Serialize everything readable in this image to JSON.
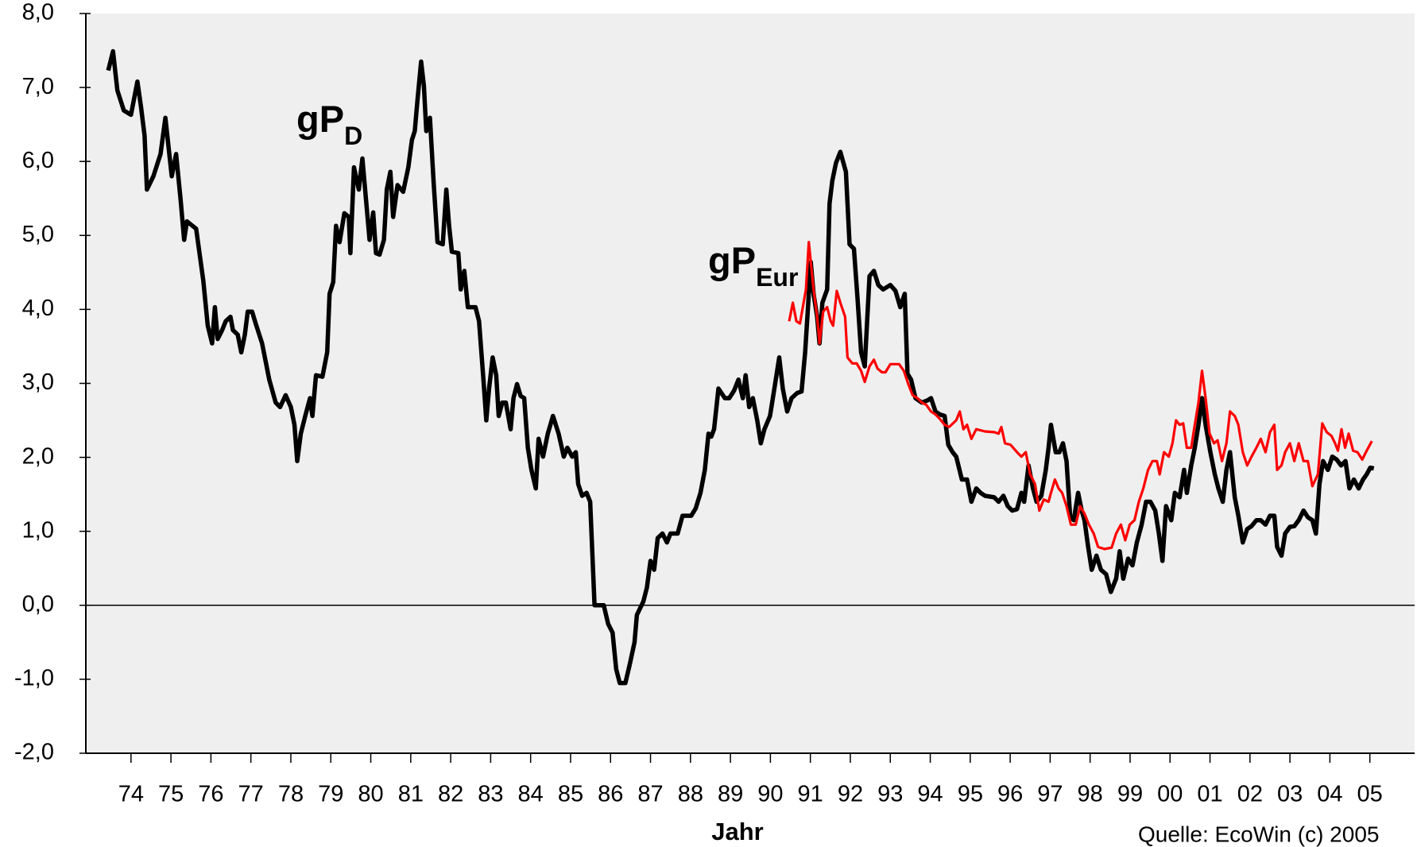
{
  "chart_data": {
    "type": "line",
    "x_label": "Jahr",
    "source": "Quelle: EcoWin (c) 2005",
    "annotations": [
      {
        "text": "gP",
        "sub": "D"
      },
      {
        "text": "gP",
        "sub": "Eur"
      }
    ],
    "xlim": [
      1973.37,
      2006.62
    ],
    "xticks": [
      {
        "value": 1974.5,
        "label": "74"
      },
      {
        "value": 1975.5,
        "label": "75"
      },
      {
        "value": 1976.5,
        "label": "76"
      },
      {
        "value": 1977.5,
        "label": "77"
      },
      {
        "value": 1978.5,
        "label": "78"
      },
      {
        "value": 1979.5,
        "label": "79"
      },
      {
        "value": 1980.5,
        "label": "80"
      },
      {
        "value": 1981.5,
        "label": "81"
      },
      {
        "value": 1982.5,
        "label": "82"
      },
      {
        "value": 1983.5,
        "label": "83"
      },
      {
        "value": 1984.5,
        "label": "84"
      },
      {
        "value": 1985.5,
        "label": "85"
      },
      {
        "value": 1986.5,
        "label": "86"
      },
      {
        "value": 1987.5,
        "label": "87"
      },
      {
        "value": 1988.5,
        "label": "88"
      },
      {
        "value": 1989.5,
        "label": "89"
      },
      {
        "value": 1990.5,
        "label": "90"
      },
      {
        "value": 1991.5,
        "label": "91"
      },
      {
        "value": 1992.5,
        "label": "92"
      },
      {
        "value": 1993.5,
        "label": "93"
      },
      {
        "value": 1994.5,
        "label": "94"
      },
      {
        "value": 1995.5,
        "label": "95"
      },
      {
        "value": 1996.5,
        "label": "96"
      },
      {
        "value": 1997.5,
        "label": "97"
      },
      {
        "value": 1998.5,
        "label": "98"
      },
      {
        "value": 1999.5,
        "label": "99"
      },
      {
        "value": 2000.5,
        "label": "00"
      },
      {
        "value": 2001.5,
        "label": "01"
      },
      {
        "value": 2002.5,
        "label": "02"
      },
      {
        "value": 2003.5,
        "label": "03"
      },
      {
        "value": 2004.5,
        "label": "04"
      },
      {
        "value": 2005.5,
        "label": "05"
      }
    ],
    "ylim": [
      -2,
      8
    ],
    "yticks": [
      {
        "value": -2,
        "label": "-2,0"
      },
      {
        "value": -1,
        "label": "-1,0"
      },
      {
        "value": 0,
        "label": "0,0"
      },
      {
        "value": 1,
        "label": "1,0"
      },
      {
        "value": 2,
        "label": "2,0"
      },
      {
        "value": 3,
        "label": "3,0"
      },
      {
        "value": 4,
        "label": "4,0"
      },
      {
        "value": 5,
        "label": "5,0"
      },
      {
        "value": 6,
        "label": "6,0"
      },
      {
        "value": 7,
        "label": "7,0"
      },
      {
        "value": 8,
        "label": "8,0"
      }
    ],
    "zero_line": true,
    "series": [
      {
        "name": "gP D",
        "color": "#000000",
        "x": [
          1973.93,
          1974.05,
          1974.16,
          1974.32,
          1974.5,
          1974.66,
          1974.75,
          1974.84,
          1974.9,
          1975.06,
          1975.24,
          1975.36,
          1975.52,
          1975.63,
          1975.74,
          1975.83,
          1975.9,
          1976.13,
          1976.31,
          1976.42,
          1976.53,
          1976.6,
          1976.67,
          1976.78,
          1976.87,
          1976.99,
          1977.05,
          1977.17,
          1977.26,
          1977.35,
          1977.42,
          1977.53,
          1977.62,
          1977.78,
          1977.96,
          1978.12,
          1978.23,
          1978.37,
          1978.5,
          1978.59,
          1978.66,
          1978.75,
          1978.86,
          1978.98,
          1979.04,
          1979.13,
          1979.29,
          1979.41,
          1979.47,
          1979.56,
          1979.63,
          1979.72,
          1979.84,
          1979.95,
          1979.99,
          1980.08,
          1980.2,
          1980.29,
          1980.38,
          1980.47,
          1980.56,
          1980.63,
          1980.72,
          1980.83,
          1980.9,
          1980.99,
          1981.06,
          1981.17,
          1981.31,
          1981.44,
          1981.53,
          1981.6,
          1981.67,
          1981.76,
          1981.83,
          1981.89,
          1981.98,
          1982.07,
          1982.17,
          1982.3,
          1982.39,
          1982.46,
          1982.53,
          1982.69,
          1982.75,
          1982.84,
          1982.93,
          1983.12,
          1983.21,
          1983.32,
          1983.39,
          1983.46,
          1983.55,
          1983.64,
          1983.7,
          1983.79,
          1983.88,
          1984.0,
          1984.07,
          1984.16,
          1984.25,
          1984.34,
          1984.43,
          1984.52,
          1984.63,
          1984.7,
          1984.81,
          1984.93,
          1985.06,
          1985.2,
          1985.33,
          1985.42,
          1985.54,
          1985.63,
          1985.69,
          1985.79,
          1985.9,
          1985.99,
          1986.1,
          1986.33,
          1986.44,
          1986.55,
          1986.64,
          1986.73,
          1986.87,
          1986.98,
          1987.1,
          1987.16,
          1987.32,
          1987.41,
          1987.5,
          1987.59,
          1987.68,
          1987.8,
          1987.91,
          1988.0,
          1988.18,
          1988.3,
          1988.52,
          1988.63,
          1988.75,
          1988.86,
          1988.95,
          1989.02,
          1989.09,
          1989.2,
          1989.36,
          1989.47,
          1989.59,
          1989.7,
          1989.81,
          1989.88,
          1989.97,
          1990.06,
          1990.17,
          1990.26,
          1990.35,
          1990.49,
          1990.6,
          1990.72,
          1990.81,
          1990.92,
          1991.03,
          1991.17,
          1991.28,
          1991.37,
          1991.44,
          1991.51,
          1991.58,
          1991.67,
          1991.73,
          1991.8,
          1991.92,
          1991.98,
          1992.05,
          1992.14,
          1992.25,
          1992.39,
          1992.48,
          1992.59,
          1992.68,
          1992.77,
          1992.86,
          1992.98,
          1993.09,
          1993.2,
          1993.32,
          1993.5,
          1993.63,
          1993.75,
          1993.86,
          1993.93,
          1994.02,
          1994.13,
          1994.29,
          1994.43,
          1994.52,
          1994.63,
          1994.74,
          1994.86,
          1994.95,
          1995.06,
          1995.15,
          1995.29,
          1995.42,
          1995.53,
          1995.65,
          1995.76,
          1995.87,
          1996.1,
          1996.21,
          1996.33,
          1996.44,
          1996.55,
          1996.67,
          1996.78,
          1996.85,
          1996.96,
          1997.07,
          1997.16,
          1997.28,
          1997.39,
          1997.46,
          1997.52,
          1997.64,
          1997.73,
          1997.82,
          1997.91,
          1998.0,
          1998.09,
          1998.2,
          1998.29,
          1998.36,
          1998.45,
          1998.54,
          1998.66,
          1998.77,
          1998.9,
          1999.02,
          1999.15,
          1999.24,
          1999.33,
          1999.45,
          1999.56,
          1999.67,
          1999.79,
          1999.9,
          2000.01,
          2000.13,
          2000.22,
          2000.31,
          2000.4,
          2000.53,
          2000.62,
          2000.74,
          2000.85,
          2000.92,
          2001.03,
          2001.12,
          2001.21,
          2001.3,
          2001.39,
          2001.51,
          2001.62,
          2001.71,
          2001.82,
          2001.91,
          2002.0,
          2002.12,
          2002.21,
          2002.32,
          2002.43,
          2002.54,
          2002.66,
          2002.77,
          2002.89,
          2003.0,
          2003.11,
          2003.18,
          2003.29,
          2003.38,
          2003.5,
          2003.61,
          2003.72,
          2003.84,
          2003.95,
          2004.06,
          2004.15,
          2004.24,
          2004.33,
          2004.45,
          2004.56,
          2004.67,
          2004.78,
          2004.89,
          2004.99,
          2005.1,
          2005.22,
          2005.33,
          2005.42,
          2005.51,
          2005.6
        ],
        "values": [
          7.23,
          7.49,
          6.96,
          6.69,
          6.63,
          7.08,
          6.74,
          6.35,
          5.62,
          5.8,
          6.1,
          6.59,
          5.8,
          6.1,
          5.49,
          4.94,
          5.19,
          5.09,
          4.39,
          3.78,
          3.54,
          4.03,
          3.6,
          3.72,
          3.84,
          3.9,
          3.72,
          3.66,
          3.42,
          3.66,
          3.97,
          3.97,
          3.81,
          3.54,
          3.05,
          2.74,
          2.68,
          2.84,
          2.68,
          2.44,
          1.95,
          2.32,
          2.56,
          2.8,
          2.56,
          3.11,
          3.09,
          3.42,
          4.21,
          4.37,
          5.13,
          4.91,
          5.3,
          5.25,
          4.76,
          5.92,
          5.62,
          6.04,
          5.49,
          4.94,
          5.31,
          4.76,
          4.74,
          4.94,
          5.62,
          5.86,
          5.25,
          5.68,
          5.59,
          5.92,
          6.29,
          6.41,
          6.84,
          7.35,
          7.02,
          6.41,
          6.59,
          5.74,
          4.91,
          4.88,
          5.62,
          5.13,
          4.78,
          4.76,
          4.27,
          4.52,
          4.03,
          4.03,
          3.84,
          3.05,
          2.5,
          2.93,
          3.35,
          3.11,
          2.56,
          2.74,
          2.74,
          2.38,
          2.8,
          2.99,
          2.83,
          2.8,
          2.13,
          1.83,
          1.58,
          2.25,
          2.01,
          2.32,
          2.56,
          2.32,
          2.01,
          2.13,
          2.01,
          2.07,
          1.64,
          1.48,
          1.52,
          1.4,
          0.0,
          0.0,
          -0.25,
          -0.37,
          -0.86,
          -1.05,
          -1.05,
          -0.8,
          -0.5,
          -0.13,
          0.05,
          0.24,
          0.6,
          0.48,
          0.91,
          0.97,
          0.85,
          0.97,
          0.97,
          1.21,
          1.21,
          1.31,
          1.52,
          1.83,
          2.32,
          2.28,
          2.38,
          2.93,
          2.8,
          2.8,
          2.9,
          3.05,
          2.8,
          3.11,
          2.68,
          2.8,
          2.5,
          2.19,
          2.38,
          2.56,
          2.93,
          3.35,
          2.93,
          2.62,
          2.8,
          2.87,
          2.89,
          3.42,
          4.03,
          4.64,
          4.21,
          3.9,
          3.54,
          4.09,
          4.27,
          5.43,
          5.74,
          5.98,
          6.13,
          5.86,
          4.88,
          4.82,
          4.15,
          3.42,
          3.23,
          4.45,
          4.52,
          4.33,
          4.27,
          4.33,
          4.25,
          4.03,
          4.21,
          3.13,
          3.05,
          2.8,
          2.74,
          2.77,
          2.8,
          2.62,
          2.58,
          2.56,
          2.17,
          2.07,
          2.01,
          1.7,
          1.7,
          1.4,
          1.58,
          1.52,
          1.48,
          1.46,
          1.4,
          1.48,
          1.34,
          1.28,
          1.3,
          1.52,
          1.4,
          1.89,
          1.58,
          1.4,
          1.48,
          1.83,
          2.13,
          2.44,
          2.07,
          2.07,
          2.19,
          1.95,
          1.21,
          1.15,
          1.52,
          1.28,
          1.15,
          0.79,
          0.48,
          0.67,
          0.48,
          0.42,
          0.18,
          0.36,
          0.73,
          0.36,
          0.63,
          0.54,
          0.85,
          1.09,
          1.4,
          1.4,
          1.28,
          0.97,
          0.6,
          1.34,
          1.15,
          1.52,
          1.46,
          1.83,
          1.52,
          1.89,
          2.13,
          2.44,
          2.8,
          2.44,
          2.07,
          1.77,
          1.58,
          1.4,
          1.83,
          2.07,
          1.46,
          1.21,
          0.85,
          1.03,
          1.07,
          1.15,
          1.15,
          1.09,
          1.21,
          1.21,
          0.79,
          0.67,
          0.97,
          1.06,
          1.07,
          1.15,
          1.28,
          1.19,
          1.15,
          0.97,
          1.64,
          1.95,
          1.83,
          2.01,
          1.97,
          1.89,
          1.95,
          1.58,
          1.7,
          1.58,
          1.7,
          1.77,
          1.86,
          1.85
        ]
      },
      {
        "name": "gP Eur",
        "color": "#ff0000",
        "x": [
          1990.97,
          1991.06,
          1991.15,
          1991.24,
          1991.39,
          1991.46,
          1991.58,
          1991.67,
          1991.73,
          1991.82,
          1991.92,
          1992.01,
          1992.07,
          1992.16,
          1992.25,
          1992.37,
          1992.43,
          1992.55,
          1992.66,
          1992.77,
          1992.86,
          1992.98,
          1993.09,
          1993.18,
          1993.29,
          1993.38,
          1993.5,
          1993.72,
          1993.84,
          1993.95,
          1994.06,
          1994.18,
          1994.29,
          1994.4,
          1994.52,
          1994.63,
          1994.74,
          1994.86,
          1994.97,
          1995.15,
          1995.24,
          1995.33,
          1995.42,
          1995.53,
          1995.65,
          1995.87,
          1996.1,
          1996.21,
          1996.28,
          1996.37,
          1996.51,
          1996.67,
          1996.78,
          1996.89,
          1997.0,
          1997.12,
          1997.23,
          1997.34,
          1997.46,
          1997.52,
          1997.62,
          1997.71,
          1997.8,
          1997.91,
          1998.02,
          1998.14,
          1998.25,
          1998.36,
          1998.47,
          1998.59,
          1998.7,
          1998.86,
          1999.04,
          1999.15,
          1999.27,
          1999.38,
          1999.49,
          1999.61,
          1999.72,
          1999.83,
          1999.95,
          2000.06,
          2000.17,
          2000.24,
          2000.35,
          2000.47,
          2000.56,
          2000.65,
          2000.74,
          2000.83,
          2000.92,
          2001.03,
          2001.12,
          2001.21,
          2001.3,
          2001.39,
          2001.49,
          2001.6,
          2001.69,
          2001.8,
          2001.91,
          2002.0,
          2002.12,
          2002.21,
          2002.32,
          2002.43,
          2002.54,
          2002.66,
          2002.77,
          2002.89,
          2003.0,
          2003.11,
          2003.18,
          2003.29,
          2003.38,
          2003.5,
          2003.61,
          2003.72,
          2003.84,
          2003.95,
          2004.06,
          2004.2,
          2004.31,
          2004.42,
          2004.54,
          2004.63,
          2004.7,
          2004.79,
          2004.88,
          2004.97,
          2005.08,
          2005.19,
          2005.31,
          2005.42,
          2005.55
        ],
        "values": [
          3.84,
          4.09,
          3.84,
          3.81,
          4.27,
          4.91,
          4.27,
          3.9,
          3.54,
          3.97,
          4.03,
          3.84,
          3.78,
          4.25,
          4.09,
          3.9,
          3.35,
          3.27,
          3.27,
          3.17,
          3.02,
          3.23,
          3.32,
          3.2,
          3.15,
          3.15,
          3.26,
          3.26,
          3.17,
          2.99,
          2.84,
          2.8,
          2.74,
          2.71,
          2.62,
          2.58,
          2.52,
          2.44,
          2.41,
          2.5,
          2.62,
          2.38,
          2.44,
          2.25,
          2.38,
          2.35,
          2.34,
          2.32,
          2.41,
          2.19,
          2.17,
          2.07,
          2.01,
          2.07,
          1.77,
          1.64,
          1.28,
          1.43,
          1.4,
          1.52,
          1.7,
          1.58,
          1.52,
          1.34,
          1.09,
          1.09,
          1.34,
          1.24,
          1.09,
          0.97,
          0.79,
          0.76,
          0.78,
          0.97,
          1.09,
          0.88,
          1.09,
          1.15,
          1.4,
          1.58,
          1.83,
          1.95,
          1.95,
          1.77,
          2.07,
          2.01,
          2.19,
          2.5,
          2.44,
          2.46,
          2.13,
          2.13,
          2.44,
          2.74,
          3.17,
          2.8,
          2.32,
          2.19,
          2.23,
          1.95,
          2.19,
          2.62,
          2.56,
          2.44,
          2.07,
          1.89,
          2.01,
          2.13,
          2.25,
          2.07,
          2.34,
          2.44,
          1.83,
          1.89,
          2.07,
          2.19,
          1.95,
          2.19,
          1.95,
          1.95,
          1.61,
          1.77,
          2.46,
          2.34,
          2.29,
          2.19,
          2.09,
          2.38,
          2.13,
          2.32,
          2.09,
          2.07,
          1.97,
          2.09,
          2.22
        ]
      }
    ]
  }
}
